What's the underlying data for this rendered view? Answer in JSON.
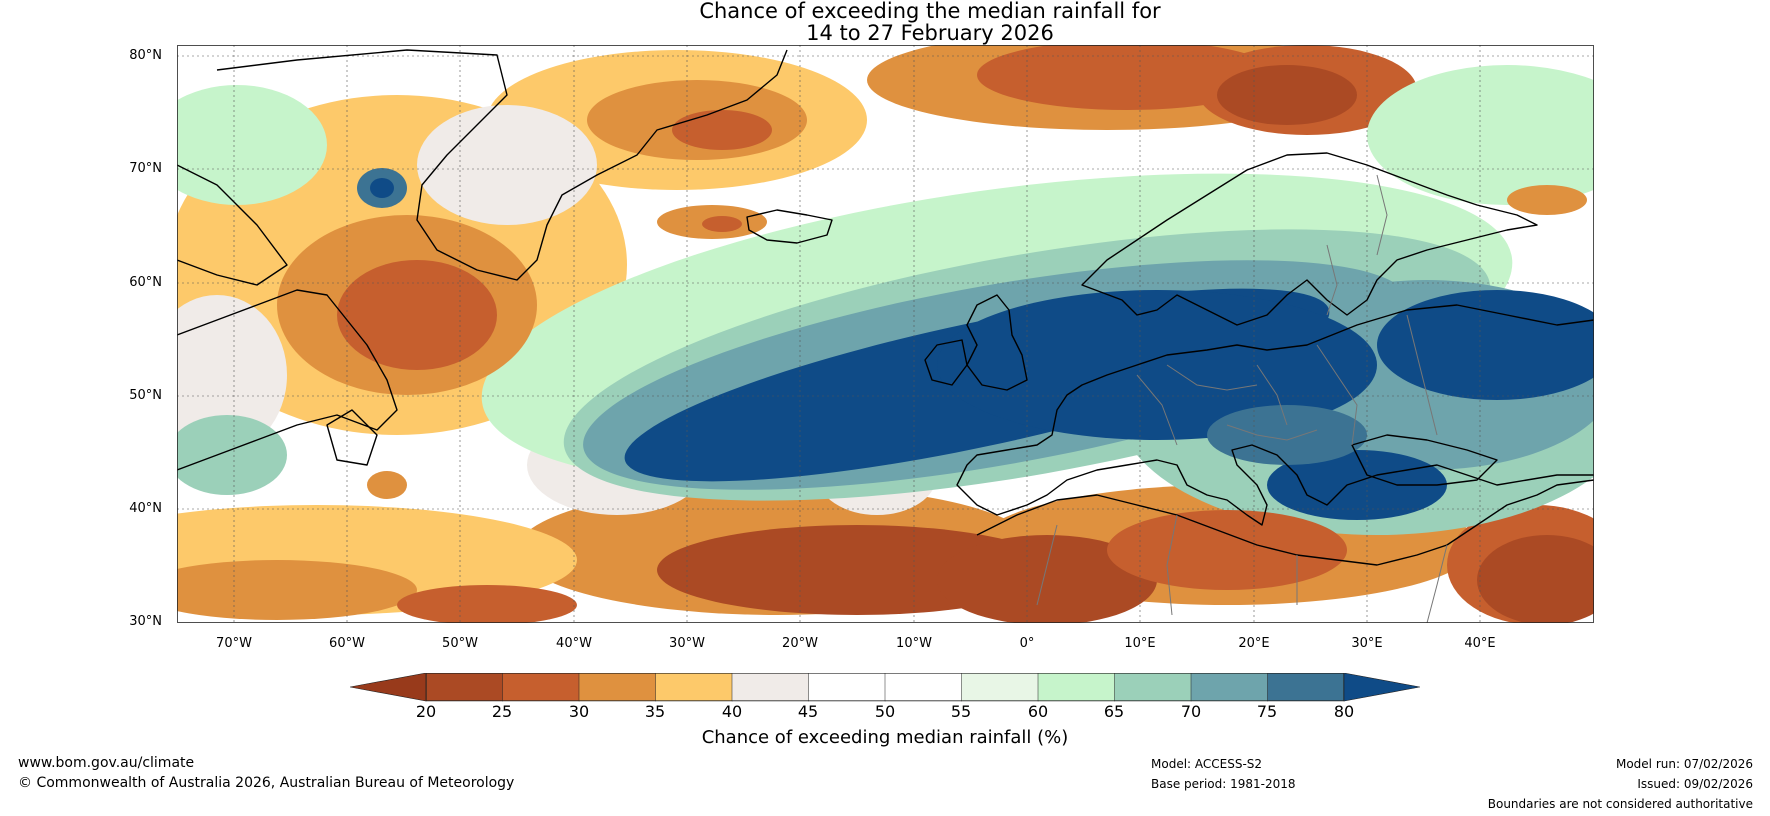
{
  "title": {
    "line1": "Chance of exceeding the median rainfall for",
    "line2": "14 to 27 February 2026"
  },
  "lat_ticks": [
    "80°N",
    "70°N",
    "60°N",
    "50°N",
    "40°N",
    "30°N"
  ],
  "lon_ticks": [
    "70°W",
    "60°W",
    "50°W",
    "40°W",
    "30°W",
    "20°W",
    "10°W",
    "0°",
    "10°E",
    "20°E",
    "30°E",
    "40°E"
  ],
  "extent": {
    "lon_min": -75,
    "lon_max": 50,
    "lat_min": 30,
    "lat_max": 81
  },
  "colorbar": {
    "title": "Chance of exceeding median rainfall (%)",
    "labels": [
      "20",
      "25",
      "30",
      "35",
      "40",
      "45",
      "50",
      "55",
      "60",
      "65",
      "70",
      "75",
      "80"
    ],
    "colors": [
      "#ab4a24",
      "#c65f2e",
      "#df913f",
      "#fdc96a",
      "#f0ebe8",
      "#ffffff",
      "#ffffff",
      "#e8f6e6",
      "#c6f4cb",
      "#9bd0b9",
      "#6ea4ac",
      "#3c7393"
    ],
    "under_color": "#983a1b",
    "over_color": "#0f4b87"
  },
  "footer": {
    "website": "www.bom.gov.au/climate",
    "copyright": "© Commonwealth of Australia 2026, Australian Bureau of Meteorology",
    "model": "Model: ACCESS-S2",
    "base_period": "Base period: 1981-2018",
    "model_run": "Model run: 07/02/2026",
    "issued": "Issued: 09/02/2026",
    "disclaimer": "Boundaries are not considered authoritative"
  }
}
